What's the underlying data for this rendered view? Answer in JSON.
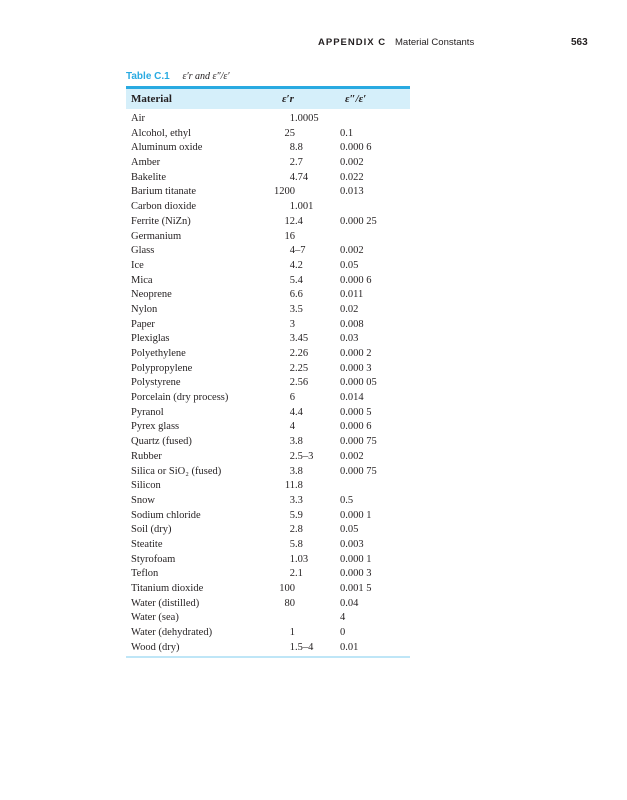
{
  "running_head": {
    "appendix": "APPENDIX C",
    "title": "Material Constants",
    "page": "563"
  },
  "caption": {
    "label": "Table C.1",
    "text": "ε′r and ε″/ε′"
  },
  "table": {
    "headers": [
      "Material",
      "ε′r",
      "ε″/ε′"
    ],
    "rows": [
      [
        "Air",
        "1.0005",
        ""
      ],
      [
        "Alcohol, ethyl",
        "25",
        "0.1"
      ],
      [
        "Aluminum oxide",
        "8.8",
        "0.000 6"
      ],
      [
        "Amber",
        "2.7",
        "0.002"
      ],
      [
        "Bakelite",
        "4.74",
        "0.022"
      ],
      [
        "Barium titanate",
        "1200",
        "0.013"
      ],
      [
        "Carbon dioxide",
        "1.001",
        ""
      ],
      [
        "Ferrite (NiZn)",
        "12.4",
        "0.000 25"
      ],
      [
        "Germanium",
        "16",
        ""
      ],
      [
        "Glass",
        "4–7",
        "0.002"
      ],
      [
        "Ice",
        "4.2",
        "0.05"
      ],
      [
        "Mica",
        "5.4",
        "0.000 6"
      ],
      [
        "Neoprene",
        "6.6",
        "0.011"
      ],
      [
        "Nylon",
        "3.5",
        "0.02"
      ],
      [
        "Paper",
        "3",
        "0.008"
      ],
      [
        "Plexiglas",
        "3.45",
        "0.03"
      ],
      [
        "Polyethylene",
        "2.26",
        "0.000 2"
      ],
      [
        "Polypropylene",
        "2.25",
        "0.000 3"
      ],
      [
        "Polystyrene",
        "2.56",
        "0.000 05"
      ],
      [
        "Porcelain (dry process)",
        "6",
        "0.014"
      ],
      [
        "Pyranol",
        "4.4",
        "0.000 5"
      ],
      [
        "Pyrex glass",
        "4",
        "0.000 6"
      ],
      [
        "Quartz (fused)",
        "3.8",
        "0.000 75"
      ],
      [
        "Rubber",
        "2.5–3",
        "0.002"
      ],
      [
        "Silica or SiO₂ (fused)",
        "3.8",
        "0.000 75"
      ],
      [
        "Silicon",
        "11.8",
        ""
      ],
      [
        "Snow",
        "3.3",
        "0.5"
      ],
      [
        "Sodium chloride",
        "5.9",
        "0.000 1"
      ],
      [
        "Soil (dry)",
        "2.8",
        "0.05"
      ],
      [
        "Steatite",
        "5.8",
        "0.003"
      ],
      [
        "Styrofoam",
        "1.03",
        "0.000 1"
      ],
      [
        "Teflon",
        "2.1",
        "0.000 3"
      ],
      [
        "Titanium dioxide",
        "100",
        "0.001 5"
      ],
      [
        "Water (distilled)",
        "80",
        "0.04"
      ],
      [
        "Water (sea)",
        "",
        "4"
      ],
      [
        "Water (dehydrated)",
        "1",
        "0"
      ],
      [
        "Wood (dry)",
        "1.5–4",
        "0.01"
      ]
    ]
  },
  "colors": {
    "accent": "#29aae1",
    "header_band": "#d5effa"
  }
}
